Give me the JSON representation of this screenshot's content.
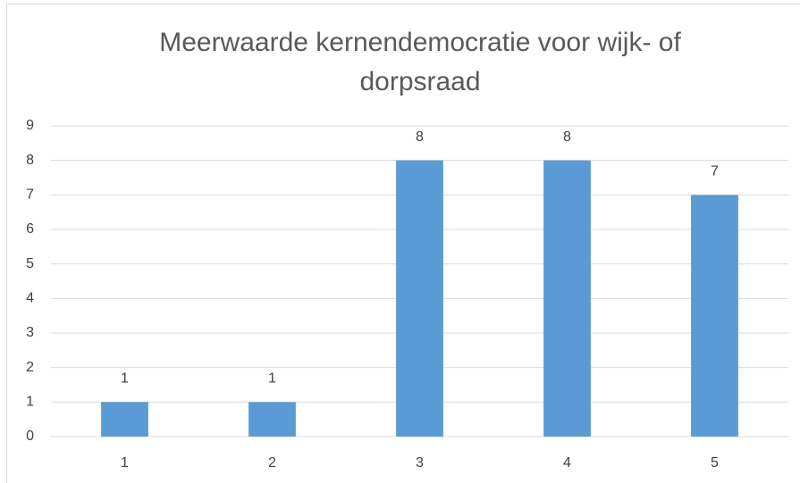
{
  "chart_data": {
    "type": "bar",
    "title": "Meerwaarde kernendemocratie voor wijk- of dorpsraad",
    "categories": [
      "1",
      "2",
      "3",
      "4",
      "5"
    ],
    "values": [
      1,
      1,
      8,
      8,
      7
    ],
    "color": "#5b9bd5",
    "ylim": [
      0,
      9
    ],
    "yticks": [
      0,
      1,
      2,
      3,
      4,
      5,
      6,
      7,
      8,
      9
    ],
    "grid": true,
    "data_labels": true
  }
}
